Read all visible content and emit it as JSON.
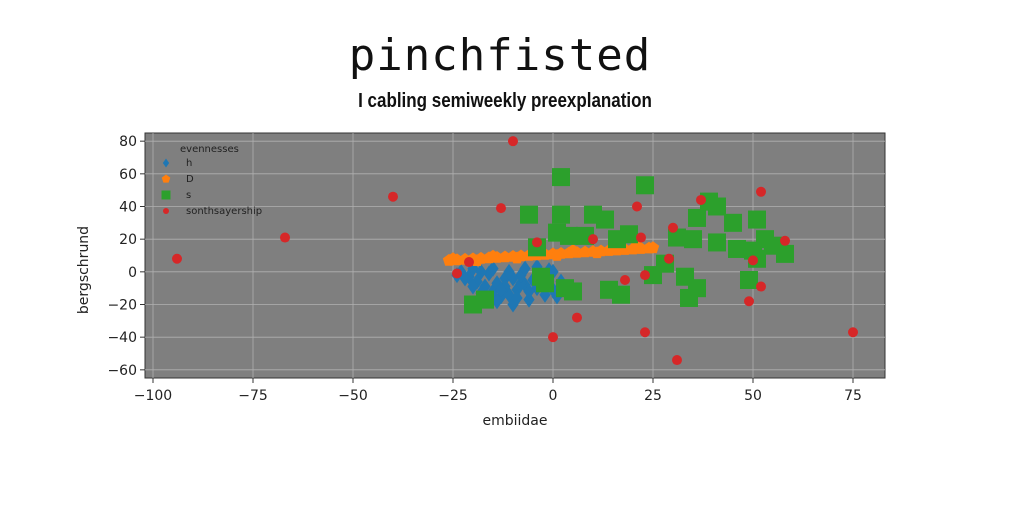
{
  "title": "pinchfisted",
  "subtitle": "I cabling semiweekly preexplanation",
  "chart_data": {
    "type": "scatter",
    "xlabel": "embiidae",
    "ylabel": "bergschrund",
    "xlim": [
      -102,
      83
    ],
    "ylim": [
      -65,
      85
    ],
    "xticks": [
      -100,
      -75,
      -50,
      -25,
      0,
      25,
      50,
      75
    ],
    "yticks": [
      -60,
      -40,
      -20,
      0,
      20,
      40,
      60,
      80
    ],
    "grid": true,
    "legend": {
      "title": "evennesses",
      "placement": "top-left"
    },
    "series": [
      {
        "name": "h",
        "marker": "diamond",
        "color": "#1f77b4",
        "points": [
          [
            -23,
            0
          ],
          [
            -21,
            -3
          ],
          [
            -19,
            -6
          ],
          [
            -17,
            -9
          ],
          [
            -15,
            -12
          ],
          [
            -13,
            -15
          ],
          [
            -11,
            -14
          ],
          [
            -9,
            -11
          ],
          [
            -7,
            -8
          ],
          [
            -5,
            -5
          ],
          [
            -3,
            -2
          ],
          [
            -1,
            1
          ],
          [
            -20,
            2
          ],
          [
            -16,
            -1
          ],
          [
            -12,
            -4
          ],
          [
            -8,
            -7
          ],
          [
            -4,
            -10
          ],
          [
            -14,
            -18
          ],
          [
            -10,
            -20
          ],
          [
            -6,
            -17
          ],
          [
            -2,
            -14
          ],
          [
            0,
            -11
          ],
          [
            -18,
            -13
          ],
          [
            -22,
            -4
          ],
          [
            -24,
            -2
          ],
          [
            -16,
            -16
          ],
          [
            -12,
            -9
          ],
          [
            -8,
            -2
          ],
          [
            -4,
            3
          ],
          [
            0,
            0
          ],
          [
            2,
            -6
          ],
          [
            -6,
            -12
          ],
          [
            -10,
            -4
          ],
          [
            -14,
            -7
          ],
          [
            -18,
            0
          ],
          [
            -20,
            -9
          ],
          [
            -15,
            2
          ],
          [
            -11,
            0
          ],
          [
            -7,
            2
          ],
          [
            -3,
            -7
          ],
          [
            1,
            -15
          ],
          [
            -9,
            -16
          ],
          [
            -13,
            -11
          ]
        ]
      },
      {
        "name": "D",
        "marker": "pentagon",
        "color": "#ff7f0e",
        "points": [
          [
            -26,
            7
          ],
          [
            -24,
            7.3
          ],
          [
            -22,
            7.6
          ],
          [
            -20,
            7.9
          ],
          [
            -18,
            8.2
          ],
          [
            -16,
            8.5
          ],
          [
            -14,
            8.8
          ],
          [
            -12,
            9.1
          ],
          [
            -10,
            9.4
          ],
          [
            -8,
            9.7
          ],
          [
            -6,
            10
          ],
          [
            -4,
            10.3
          ],
          [
            -2,
            10.6
          ],
          [
            0,
            10.9
          ],
          [
            2,
            11.2
          ],
          [
            4,
            11.5
          ],
          [
            6,
            11.8
          ],
          [
            8,
            12.1
          ],
          [
            10,
            12.4
          ],
          [
            12,
            12.7
          ],
          [
            14,
            13
          ],
          [
            16,
            13.3
          ],
          [
            18,
            13.6
          ],
          [
            20,
            13.9
          ],
          [
            22,
            14.2
          ],
          [
            24,
            14.5
          ],
          [
            25,
            14.7
          ],
          [
            -25,
            8
          ],
          [
            -15,
            9.5
          ],
          [
            -5,
            11
          ],
          [
            5,
            13
          ],
          [
            15,
            14.5
          ],
          [
            21,
            16
          ],
          [
            -19,
            6.8
          ],
          [
            -9,
            8.4
          ],
          [
            1,
            10
          ],
          [
            11,
            11.6
          ]
        ]
      },
      {
        "name": "s",
        "marker": "square",
        "color": "#2ca02c",
        "points": [
          [
            2,
            58
          ],
          [
            23,
            53
          ],
          [
            -6,
            35
          ],
          [
            2,
            35
          ],
          [
            10,
            35
          ],
          [
            13,
            32
          ],
          [
            39,
            43
          ],
          [
            41,
            40
          ],
          [
            45,
            30
          ],
          [
            51,
            32
          ],
          [
            36,
            33
          ],
          [
            31,
            21
          ],
          [
            19,
            23
          ],
          [
            16,
            20
          ],
          [
            4,
            22
          ],
          [
            -4,
            15
          ],
          [
            1,
            24
          ],
          [
            8,
            22
          ],
          [
            35,
            20
          ],
          [
            41,
            18
          ],
          [
            46,
            14
          ],
          [
            50,
            13
          ],
          [
            53,
            20
          ],
          [
            55,
            16
          ],
          [
            58,
            11
          ],
          [
            -2,
            -7
          ],
          [
            3,
            -10
          ],
          [
            5,
            -12
          ],
          [
            14,
            -11
          ],
          [
            17,
            -14
          ],
          [
            33,
            -3
          ],
          [
            34,
            -16
          ],
          [
            36,
            -10
          ],
          [
            49,
            -5
          ],
          [
            51,
            8
          ],
          [
            -20,
            -20
          ],
          [
            -17,
            -17
          ],
          [
            -3,
            -3
          ],
          [
            25,
            -2
          ],
          [
            28,
            5
          ]
        ]
      },
      {
        "name": "sonthsayership",
        "marker": "circle",
        "color": "#d62728",
        "points": [
          [
            -10,
            80
          ],
          [
            -94,
            8
          ],
          [
            -67,
            21
          ],
          [
            -40,
            46
          ],
          [
            -13,
            39
          ],
          [
            -4,
            18
          ],
          [
            -21,
            6
          ],
          [
            10,
            20
          ],
          [
            21,
            40
          ],
          [
            22,
            21
          ],
          [
            30,
            27
          ],
          [
            29,
            8
          ],
          [
            37,
            44
          ],
          [
            52,
            49
          ],
          [
            58,
            19
          ],
          [
            50,
            7
          ],
          [
            52,
            -9
          ],
          [
            49,
            -18
          ],
          [
            75,
            -37
          ],
          [
            18,
            -5
          ],
          [
            23,
            -2
          ],
          [
            6,
            -28
          ],
          [
            0,
            -40
          ],
          [
            23,
            -37
          ],
          [
            31,
            -54
          ],
          [
            -24,
            -1
          ]
        ]
      }
    ]
  }
}
